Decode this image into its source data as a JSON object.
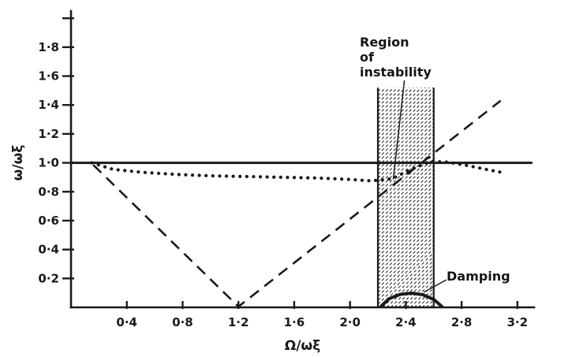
{
  "figure": {
    "background": "#ffffff",
    "ink_color": "#1a1a1a"
  },
  "chart_data": {
    "type": "line",
    "title": "",
    "xlabel": "Ω/ωξ",
    "ylabel": "ω/ωξ",
    "xlim": [
      0,
      3.45
    ],
    "ylim": [
      0,
      2.05
    ],
    "grid": false,
    "x_ticks": [
      {
        "value": 0.4,
        "label": "0·4"
      },
      {
        "value": 0.8,
        "label": "0·8"
      },
      {
        "value": 1.2,
        "label": "1·2"
      },
      {
        "value": 1.6,
        "label": "1·6"
      },
      {
        "value": 2.0,
        "label": "2·0"
      },
      {
        "value": 2.4,
        "label": "2·4"
      },
      {
        "value": 2.8,
        "label": "2·8"
      },
      {
        "value": 3.2,
        "label": "3·2"
      }
    ],
    "y_ticks": [
      {
        "value": 0.2,
        "label": "0·2"
      },
      {
        "value": 0.4,
        "label": "0·4"
      },
      {
        "value": 0.6,
        "label": "0·6"
      },
      {
        "value": 0.8,
        "label": "0·8"
      },
      {
        "value": 1.0,
        "label": "1·0"
      },
      {
        "value": 1.2,
        "label": "1·2"
      },
      {
        "value": 1.4,
        "label": "1·4"
      },
      {
        "value": 1.6,
        "label": "1·6"
      },
      {
        "value": 1.8,
        "label": "1·8"
      },
      {
        "value": 2.0,
        "label": ""
      }
    ],
    "series": [
      {
        "name": "unity-frequency-line",
        "style": "solid",
        "width": 3,
        "points": [
          [
            0.0,
            1.0
          ],
          [
            3.3,
            1.0
          ]
        ]
      },
      {
        "name": "dotted-frequency-curve",
        "style": "dotted",
        "width": 4.2,
        "points": [
          [
            0.15,
            1.0
          ],
          [
            0.3,
            0.955
          ],
          [
            0.5,
            0.935
          ],
          [
            0.75,
            0.92
          ],
          [
            1.0,
            0.91
          ],
          [
            1.25,
            0.905
          ],
          [
            1.5,
            0.9
          ],
          [
            1.75,
            0.895
          ],
          [
            2.0,
            0.885
          ],
          [
            2.15,
            0.875
          ],
          [
            2.3,
            0.89
          ],
          [
            2.45,
            0.96
          ],
          [
            2.58,
            1.01
          ],
          [
            2.7,
            1.005
          ],
          [
            2.85,
            0.98
          ],
          [
            3.0,
            0.95
          ],
          [
            3.08,
            0.935
          ]
        ]
      },
      {
        "name": "dashed-v-curve",
        "style": "dashed",
        "width": 2.6,
        "points": [
          [
            0.16,
            0.985
          ],
          [
            1.2,
            0.005
          ],
          [
            3.08,
            1.43
          ]
        ]
      },
      {
        "name": "damping-curve",
        "style": "solid",
        "width": 4,
        "points": [
          [
            2.22,
            0.005
          ],
          [
            2.28,
            0.06
          ],
          [
            2.36,
            0.09
          ],
          [
            2.44,
            0.098
          ],
          [
            2.52,
            0.088
          ],
          [
            2.6,
            0.055
          ],
          [
            2.66,
            0.005
          ]
        ]
      }
    ],
    "instability_band": {
      "x0": 2.2,
      "x1": 2.6,
      "y0": 0,
      "y1": 1.52,
      "hatch": true
    },
    "pointers": [
      {
        "name": "region-pointer-line",
        "from": [
          2.39,
          1.57
        ],
        "to": [
          2.31,
          0.885
        ]
      },
      {
        "name": "damping-pointer-line",
        "from": [
          2.69,
          0.19
        ],
        "to": [
          2.53,
          0.105
        ]
      }
    ],
    "annotations": {
      "region": {
        "lines": [
          "Region",
          "of",
          "instability"
        ]
      },
      "damping": {
        "text": "Damping"
      }
    }
  }
}
